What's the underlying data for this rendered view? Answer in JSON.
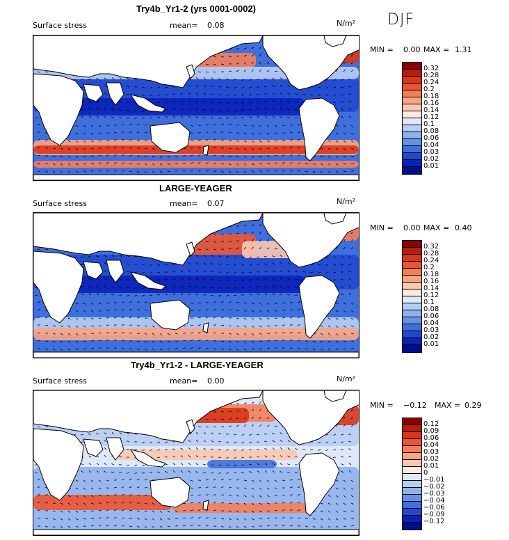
{
  "season": "DJF",
  "panels": [
    {
      "title": "Try4b_Yr1-2 (yrs 0001-0002)",
      "variable": "Surface stress",
      "mean_label": "mean=",
      "mean": "0.08",
      "units": "N/m²",
      "min_label": "MIN =",
      "min": "0.00",
      "max_label": "MAX =",
      "max": "1.31",
      "levels": [
        "0.32",
        "0.28",
        "0.24",
        "0.2",
        "0.18",
        "0.16",
        "0.14",
        "0.12",
        "0.1",
        "0.08",
        "0.06",
        "0.04",
        "0.03",
        "0.02",
        "0.01"
      ],
      "colors": [
        "#8b0000",
        "#b81d0c",
        "#d9361b",
        "#ec5532",
        "#f57e5a",
        "#f9a585",
        "#fbc8b0",
        "#fde9de",
        "#dfe8f8",
        "#b7cdf3",
        "#8fb1ec",
        "#6692e4",
        "#3e6fdb",
        "#2149cf",
        "#0b22b8",
        "#000f8c"
      ]
    },
    {
      "title": "LARGE-YEAGER",
      "variable": "Surface stress",
      "mean_label": "mean=",
      "mean": "0.07",
      "units": "N/m²",
      "min_label": "MIN =",
      "min": "0.00",
      "max_label": "MAX =",
      "max": "0.40",
      "levels": [
        "0.32",
        "0.28",
        "0.24",
        "0.2",
        "0.18",
        "0.16",
        "0.14",
        "0.12",
        "0.1",
        "0.08",
        "0.06",
        "0.04",
        "0.03",
        "0.02",
        "0.01"
      ],
      "colors": [
        "#8b0000",
        "#b81d0c",
        "#d9361b",
        "#ec5532",
        "#f57e5a",
        "#f9a585",
        "#fbc8b0",
        "#fde9de",
        "#dfe8f8",
        "#b7cdf3",
        "#8fb1ec",
        "#6692e4",
        "#3e6fdb",
        "#2149cf",
        "#0b22b8",
        "#000f8c"
      ]
    },
    {
      "title": "Try4b_Yr1-2 - LARGE-YEAGER",
      "variable": "Surface stress",
      "mean_label": "mean=",
      "mean": "0.00",
      "units": "N/m²",
      "min_label": "MIN =",
      "min": "−0.12",
      "max_label": "MAX =",
      "max": "0.29",
      "levels": [
        "0.12",
        "0.09",
        "0.06",
        "0.04",
        "0.03",
        "0.02",
        "0.01",
        "0",
        "−0.01",
        "−0.02",
        "−0.03",
        "−0.04",
        "−0.06",
        "−0.09",
        "−0.12"
      ],
      "colors": [
        "#8b0000",
        "#b81d0c",
        "#d9361b",
        "#ec5532",
        "#f57e5a",
        "#f9a585",
        "#fbc8b0",
        "#fde9de",
        "#dfe8f8",
        "#b7cdf3",
        "#8fb1ec",
        "#6692e4",
        "#3e6fdb",
        "#2149cf",
        "#0b22b8",
        "#000f8c"
      ]
    }
  ]
}
